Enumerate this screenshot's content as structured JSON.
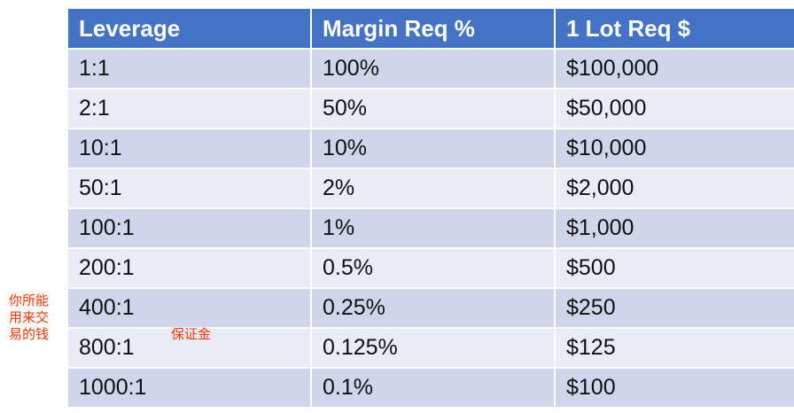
{
  "table": {
    "headers": [
      "Leverage",
      "Margin Req %",
      "1 Lot Req $"
    ],
    "rows": [
      [
        "1:1",
        "100%",
        "$100,000"
      ],
      [
        "2:1",
        "50%",
        "$50,000"
      ],
      [
        "10:1",
        "10%",
        "$10,000"
      ],
      [
        "50:1",
        "2%",
        "$2,000"
      ],
      [
        "100:1",
        "1%",
        "$1,000"
      ],
      [
        "200:1",
        "0.5%",
        "$500"
      ],
      [
        "400:1",
        "0.25%",
        "$250"
      ],
      [
        "800:1",
        "0.125%",
        "$125"
      ],
      [
        "1000:1",
        "0.1%",
        "$100"
      ]
    ]
  },
  "annotations": {
    "left_lines": [
      "你所能",
      "用来交",
      "易的钱"
    ],
    "middle": "保证金",
    "color": "#ff3300"
  },
  "colors": {
    "header_bg": "#4472c4",
    "row_dark": "#cfd5ea",
    "row_light": "#e9ebf5"
  }
}
